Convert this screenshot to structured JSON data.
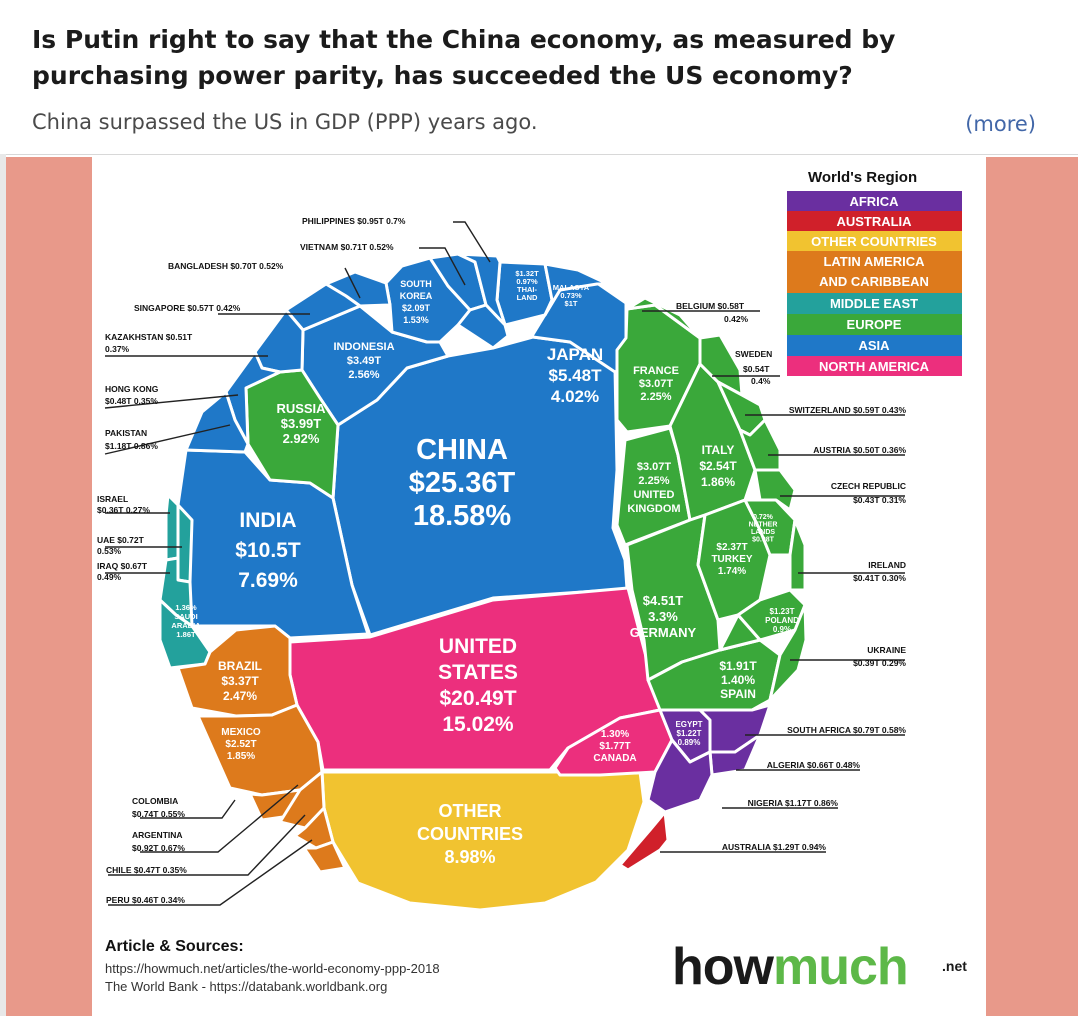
{
  "post": {
    "question": "Is Putin right to say that the China economy, as measured by purchasing power parity, has succeeded the US economy?",
    "subtitle": "China surpassed the US in GDP (PPP) years ago.",
    "more_link": "(more)"
  },
  "colors": {
    "side_panel": "#e8998a",
    "Africa": "#6a2fa0",
    "Australia": "#d0202a",
    "Other Countries": "#f1c330",
    "Latin America": "#dd7a1c",
    "Middle East": "#23a19c",
    "Europe": "#3aa83a",
    "Asia": "#1f78c8",
    "North America": "#ec2f7d"
  },
  "legend": {
    "title": "World's Region",
    "items": [
      "AFRICA",
      "AUSTRALIA",
      "OTHER COUNTRIES",
      "LATIN AMERICA AND CARIBBEAN",
      "MIDDLE EAST",
      "EUROPE",
      "ASIA",
      "NORTH AMERICA"
    ]
  },
  "chart_data": {
    "type": "voronoi-treemap",
    "series_field": "region",
    "countries": [
      {
        "name": "CHINA",
        "value_label": "$25.36T",
        "pct_label": "18.58%",
        "value": 25.36,
        "pct": 18.58,
        "region": "Asia"
      },
      {
        "name": "UNITED STATES",
        "value_label": "$20.49T",
        "pct_label": "15.02%",
        "value": 20.49,
        "pct": 15.02,
        "region": "North America"
      },
      {
        "name": "INDIA",
        "value_label": "$10.5T",
        "pct_label": "7.69%",
        "value": 10.5,
        "pct": 7.69,
        "region": "Asia"
      },
      {
        "name": "OTHER COUNTRIES",
        "value_label": "",
        "pct_label": "8.98%",
        "value": null,
        "pct": 8.98,
        "region": "Other Countries"
      },
      {
        "name": "JAPAN",
        "value_label": "$5.48T",
        "pct_label": "4.02%",
        "value": 5.48,
        "pct": 4.02,
        "region": "Asia"
      },
      {
        "name": "GERMANY",
        "value_label": "$4.51T",
        "pct_label": "3.3%",
        "value": 4.51,
        "pct": 3.3,
        "region": "Europe"
      },
      {
        "name": "RUSSIA",
        "value_label": "$3.99T",
        "pct_label": "2.92%",
        "value": 3.99,
        "pct": 2.92,
        "region": "Europe"
      },
      {
        "name": "INDONESIA",
        "value_label": "$3.49T",
        "pct_label": "2.56%",
        "value": 3.49,
        "pct": 2.56,
        "region": "Asia"
      },
      {
        "name": "BRAZIL",
        "value_label": "$3.37T",
        "pct_label": "2.47%",
        "value": 3.37,
        "pct": 2.47,
        "region": "Latin America"
      },
      {
        "name": "FRANCE",
        "value_label": "$3.07T",
        "pct_label": "2.25%",
        "value": 3.07,
        "pct": 2.25,
        "region": "Europe"
      },
      {
        "name": "UNITED KINGDOM",
        "value_label": "$3.07T",
        "pct_label": "2.25%",
        "value": 3.07,
        "pct": 2.25,
        "region": "Europe"
      },
      {
        "name": "ITALY",
        "value_label": "$2.54T",
        "pct_label": "1.86%",
        "value": 2.54,
        "pct": 1.86,
        "region": "Europe"
      },
      {
        "name": "MEXICO",
        "value_label": "$2.52T",
        "pct_label": "1.85%",
        "value": 2.52,
        "pct": 1.85,
        "region": "Latin America"
      },
      {
        "name": "TURKEY",
        "value_label": "$2.37T",
        "pct_label": "1.74%",
        "value": 2.37,
        "pct": 1.74,
        "region": "Europe"
      },
      {
        "name": "SOUTH KOREA",
        "value_label": "$2.09T",
        "pct_label": "1.53%",
        "value": 2.09,
        "pct": 1.53,
        "region": "Asia"
      },
      {
        "name": "SPAIN",
        "value_label": "$1.91T",
        "pct_label": "1.40%",
        "value": 1.91,
        "pct": 1.4,
        "region": "Europe"
      },
      {
        "name": "SAUDI ARABIA",
        "value_label": "1.86T",
        "pct_label": "1.36%",
        "value": 1.86,
        "pct": 1.36,
        "region": "Middle East"
      },
      {
        "name": "CANADA",
        "value_label": "$1.77T",
        "pct_label": "1.30%",
        "value": 1.77,
        "pct": 1.3,
        "region": "North America"
      },
      {
        "name": "THAILAND",
        "value_label": "$1.32T",
        "pct_label": "0.97%",
        "value": 1.32,
        "pct": 0.97,
        "region": "Asia"
      },
      {
        "name": "AUSTRALIA",
        "value_label": "$1.29T",
        "pct_label": "0.94%",
        "value": 1.29,
        "pct": 0.94,
        "region": "Australia"
      },
      {
        "name": "POLAND",
        "value_label": "$1.23T",
        "pct_label": "0.9%",
        "value": 1.23,
        "pct": 0.9,
        "region": "Europe"
      },
      {
        "name": "EGYPT",
        "value_label": "$1.22T",
        "pct_label": "0.89%",
        "value": 1.22,
        "pct": 0.89,
        "region": "Africa"
      },
      {
        "name": "PAKISTAN",
        "value_label": "$1.18T",
        "pct_label": "0.86%",
        "value": 1.18,
        "pct": 0.86,
        "region": "Asia"
      },
      {
        "name": "NIGERIA",
        "value_label": "$1.17T",
        "pct_label": "0.86%",
        "value": 1.17,
        "pct": 0.86,
        "region": "Africa"
      },
      {
        "name": "NETHERLANDS",
        "value_label": "$0.98T",
        "pct_label": "0.72%",
        "value": 0.98,
        "pct": 0.72,
        "region": "Europe"
      },
      {
        "name": "MALAYSIA",
        "value_label": "$1T",
        "pct_label": "0.73%",
        "value": 1.0,
        "pct": 0.73,
        "region": "Asia"
      },
      {
        "name": "PHILIPPINES",
        "value_label": "$0.95T",
        "pct_label": "0.7%",
        "value": 0.95,
        "pct": 0.7,
        "region": "Asia"
      },
      {
        "name": "ARGENTINA",
        "value_label": "$0.92T",
        "pct_label": "0.67%",
        "value": 0.92,
        "pct": 0.67,
        "region": "Latin America"
      },
      {
        "name": "SOUTH AFRICA",
        "value_label": "$0.79T",
        "pct_label": "0.58%",
        "value": 0.79,
        "pct": 0.58,
        "region": "Africa"
      },
      {
        "name": "COLOMBIA",
        "value_label": "$0.74T",
        "pct_label": "0.55%",
        "value": 0.74,
        "pct": 0.55,
        "region": "Latin America"
      },
      {
        "name": "UAE",
        "value_label": "$0.72T",
        "pct_label": "0.53%",
        "value": 0.72,
        "pct": 0.53,
        "region": "Middle East"
      },
      {
        "name": "VIETNAM",
        "value_label": "$0.71T",
        "pct_label": "0.52%",
        "value": 0.71,
        "pct": 0.52,
        "region": "Asia"
      },
      {
        "name": "BANGLADESH",
        "value_label": "$0.70T",
        "pct_label": "0.52%",
        "value": 0.7,
        "pct": 0.52,
        "region": "Asia"
      },
      {
        "name": "IRAQ",
        "value_label": "$0.67T",
        "pct_label": "0.49%",
        "value": 0.67,
        "pct": 0.49,
        "region": "Middle East"
      },
      {
        "name": "ALGERIA",
        "value_label": "$0.66T",
        "pct_label": "0.48%",
        "value": 0.66,
        "pct": 0.48,
        "region": "Africa"
      },
      {
        "name": "SWITZERLAND",
        "value_label": "$0.59T",
        "pct_label": "0.43%",
        "value": 0.59,
        "pct": 0.43,
        "region": "Europe"
      },
      {
        "name": "BELGIUM",
        "value_label": "$0.58T",
        "pct_label": "0.42%",
        "value": 0.58,
        "pct": 0.42,
        "region": "Europe"
      },
      {
        "name": "SINGAPORE",
        "value_label": "$0.57T",
        "pct_label": "0.42%",
        "value": 0.57,
        "pct": 0.42,
        "region": "Asia"
      },
      {
        "name": "SWEDEN",
        "value_label": "$0.54T",
        "pct_label": "0.4%",
        "value": 0.54,
        "pct": 0.4,
        "region": "Europe"
      },
      {
        "name": "KAZAKHSTAN",
        "value_label": "$0.51T",
        "pct_label": "0.37%",
        "value": 0.51,
        "pct": 0.37,
        "region": "Asia"
      },
      {
        "name": "AUSTRIA",
        "value_label": "$0.50T",
        "pct_label": "0.36%",
        "value": 0.5,
        "pct": 0.36,
        "region": "Europe"
      },
      {
        "name": "HONG KONG",
        "value_label": "$0.48T",
        "pct_label": "0.35%",
        "value": 0.48,
        "pct": 0.35,
        "region": "Asia"
      },
      {
        "name": "CHILE",
        "value_label": "$0.47T",
        "pct_label": "0.35%",
        "value": 0.47,
        "pct": 0.35,
        "region": "Latin America"
      },
      {
        "name": "PERU",
        "value_label": "$0.46T",
        "pct_label": "0.34%",
        "value": 0.46,
        "pct": 0.34,
        "region": "Latin America"
      },
      {
        "name": "CZECH REPUBLIC",
        "value_label": "$0.43T",
        "pct_label": "0.31%",
        "value": 0.43,
        "pct": 0.31,
        "region": "Europe"
      },
      {
        "name": "IRELAND",
        "value_label": "$0.41T",
        "pct_label": "0.30%",
        "value": 0.41,
        "pct": 0.3,
        "region": "Europe"
      },
      {
        "name": "UKRAINE",
        "value_label": "$0.39T",
        "pct_label": "0.29%",
        "value": 0.39,
        "pct": 0.29,
        "region": "Europe"
      },
      {
        "name": "ISRAEL",
        "value_label": "$0.36T",
        "pct_label": "0.27%",
        "value": 0.36,
        "pct": 0.27,
        "region": "Middle East"
      }
    ]
  },
  "tile_text": {
    "china": [
      "CHINA",
      "$25.36T",
      "18.58%"
    ],
    "us": [
      "UNITED",
      "STATES",
      "$20.49T",
      "15.02%"
    ],
    "india": [
      "INDIA",
      "$10.5T",
      "7.69%"
    ],
    "other": [
      "OTHER",
      "COUNTRIES",
      "8.98%"
    ],
    "japan": [
      "JAPAN",
      "$5.48T",
      "4.02%"
    ],
    "germany": [
      "$4.51T",
      "3.3%",
      "GERMANY"
    ],
    "russia": [
      "RUSSIA",
      "$3.99T",
      "2.92%"
    ],
    "indonesia": [
      "INDONESIA",
      "$3.49T",
      "2.56%"
    ],
    "brazil": [
      "BRAZIL",
      "$3.37T",
      "2.47%"
    ],
    "france": [
      "FRANCE",
      "$3.07T",
      "2.25%"
    ],
    "uk": [
      "$3.07T",
      "2.25%",
      "UNITED",
      "KINGDOM"
    ],
    "italy": [
      "ITALY",
      "$2.54T",
      "1.86%"
    ],
    "mexico": [
      "MEXICO",
      "$2.52T",
      "1.85%"
    ],
    "turkey": [
      "$2.37T",
      "TURKEY",
      "1.74%"
    ],
    "south_korea": [
      "SOUTH",
      "KOREA",
      "$2.09T",
      "1.53%"
    ],
    "spain": [
      "$1.91T",
      "1.40%",
      "SPAIN"
    ],
    "saudi": [
      "1.36%",
      "SAUDI",
      "ARABIA",
      "1.86T"
    ],
    "canada": [
      "1.30%",
      "$1.77T",
      "CANADA"
    ],
    "thailand": [
      "$1.32T",
      "0.97%",
      "THAI-",
      "LAND"
    ],
    "malaysia": [
      "MALASYA",
      "0.73%",
      "$1T"
    ],
    "poland": [
      "$1.23T",
      "POLAND",
      "0.9%"
    ],
    "egypt": [
      "EGYPT",
      "$1.22T",
      "0.89%"
    ],
    "netherlands": [
      "0.72%",
      "NETHER",
      "LANDS",
      "$0.98T"
    ]
  },
  "callouts": {
    "philippines": "PHILIPPINES $0.95T  0.7%",
    "vietnam": "VIETNAM $0.71T  0.52%",
    "bangladesh": "BANGLADESH $0.70T  0.52%",
    "singapore": "SINGAPORE $0.57T  0.42%",
    "kazakhstan_1": "KAZAKHSTAN $0.51T",
    "kazakhstan_2": "0.37%",
    "hongkong_1": "HONG KONG",
    "hongkong_2": "$0.48T  0.35%",
    "pakistan_1": "PAKISTAN",
    "pakistan_2": "$1.18T  0.86%",
    "israel_1": "ISRAEL",
    "israel_2": "$0.36T  0.27%",
    "uae_1": "UAE $0.72T",
    "uae_2": "0.53%",
    "iraq_1": "IRAQ $0.67T",
    "iraq_2": "0.49%",
    "colombia_1": "COLOMBIA",
    "colombia_2": "$0.74T  0.55%",
    "argentina_1": "ARGENTINA",
    "argentina_2": "$0.92T  0.67%",
    "chile": "CHILE $0.47T  0.35%",
    "peru": "PERU $0.46T  0.34%",
    "belgium_1": "BELGIUM  $0.58T",
    "belgium_2": "0.42%",
    "sweden_1": "SWEDEN",
    "sweden_2": "$0.54T",
    "sweden_3": "0.4%",
    "switzerland": "SWITZERLAND $0.59T  0.43%",
    "austria": "AUSTRIA  $0.50T  0.36%",
    "czech_1": "CZECH REPUBLIC",
    "czech_2": "$0.43T  0.31%",
    "ireland_1": "IRELAND",
    "ireland_2": "$0.41T  0.30%",
    "ukraine_1": "UKRAINE",
    "ukraine_2": "$0.39T  0.29%",
    "southafrica": "SOUTH AFRICA $0.79T  0.58%",
    "algeria": "ALGERIA $0.66T  0.48%",
    "nigeria": "NIGERIA  $1.17T  0.86%",
    "australia": "AUSTRALIA  $1.29T  0.94%"
  },
  "sources": {
    "title": "Article & Sources:",
    "line1": "https://howmuch.net/articles/the-world-economy-ppp-2018",
    "line2": "The World Bank - https://databank.worldbank.org"
  },
  "brand": {
    "how": "how",
    "much": "much",
    "net": ".net"
  }
}
